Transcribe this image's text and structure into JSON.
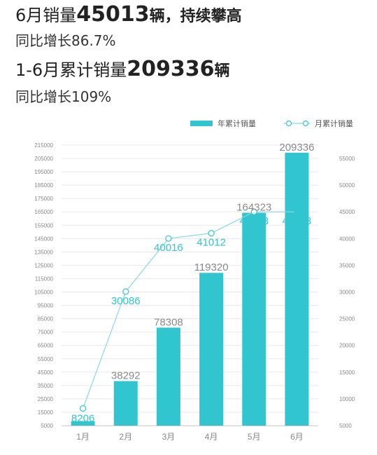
{
  "headline": {
    "line1_pre": "6月销量",
    "line1_num": "45013",
    "line1_unit": "辆",
    "line1_post": "，持续攀高",
    "line2": "同比增长86.7%",
    "line3_pre": "1-6月累计销量",
    "line3_num": "209336",
    "line3_unit": "辆",
    "line4": "同比增长109%"
  },
  "colors": {
    "bar": "#30c5cf",
    "line": "#8ad8df",
    "marker_fill": "#ffffff",
    "grid": "#e8e8e8"
  },
  "chart_data": {
    "type": "bar",
    "categories": [
      "1月",
      "2月",
      "3月",
      "4月",
      "5月",
      "6月"
    ],
    "series": [
      {
        "name": "年累计销量",
        "type": "bar",
        "axis": "left",
        "values": [
          8206,
          38292,
          78308,
          119320,
          164323,
          209336
        ]
      },
      {
        "name": "月累计销量",
        "type": "line",
        "axis": "right",
        "values": [
          8206,
          30086,
          40016,
          41012,
          45003,
          45013
        ]
      }
    ],
    "y_left": {
      "min": 5000,
      "max": 215000,
      "ticks": [
        "215000",
        "205000",
        "195000",
        "185000",
        "175000",
        "165000",
        "155000",
        "145000",
        "135000",
        "125000",
        "115000",
        "105000",
        "95000",
        "85000",
        "75000",
        "65000",
        "55000",
        "45000",
        "35000",
        "25000",
        "15000",
        "5000"
      ]
    },
    "y_right": {
      "min": 5000,
      "max": 57500,
      "ticks": [
        "55000",
        "50000",
        "45000",
        "40000",
        "35000",
        "30000",
        "25000",
        "20000",
        "15000",
        "10000",
        "5000"
      ]
    },
    "legend_position": "top-right",
    "grid": true
  }
}
